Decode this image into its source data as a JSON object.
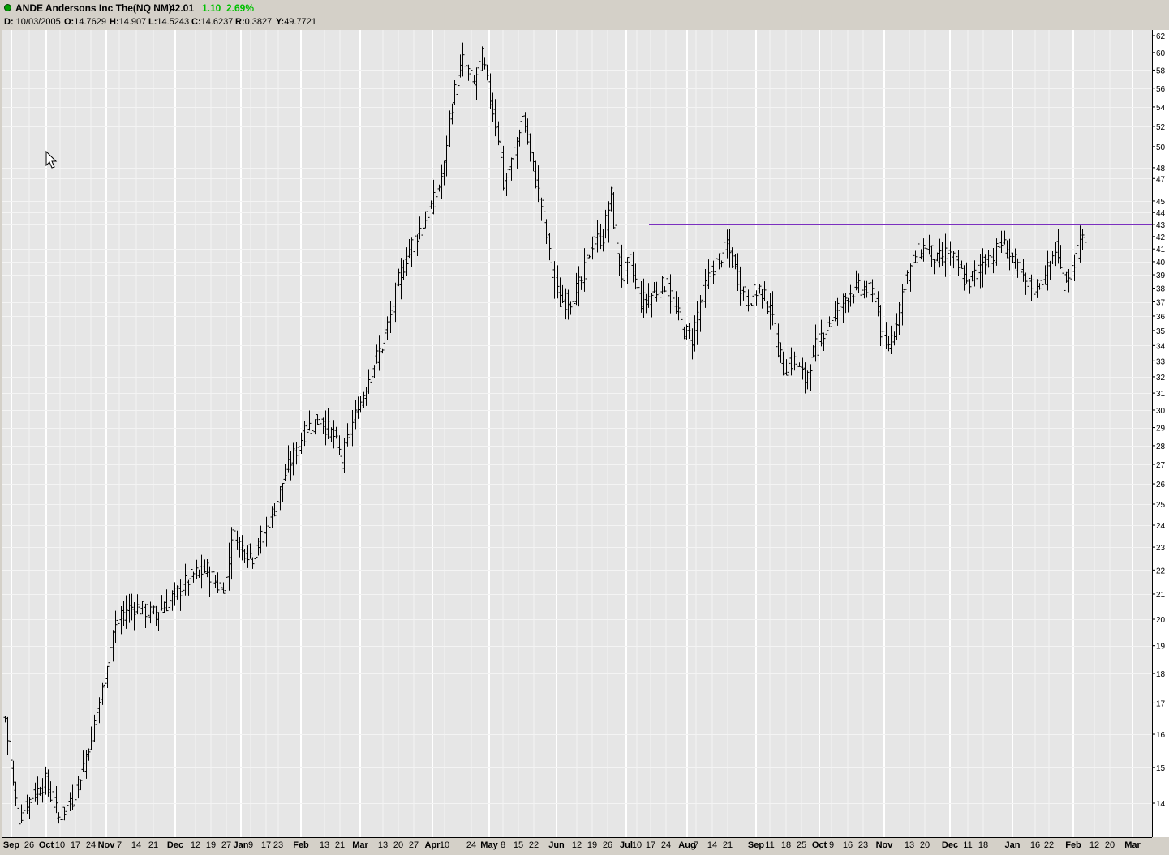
{
  "header": {
    "status_icon": "green-dot-icon",
    "title": "ANDE Andersons Inc The(NQ NM)",
    "last": "42.01",
    "change": "1.10",
    "change_pct": "2.69%",
    "change_color": "#00c000"
  },
  "info": {
    "d_label": "D:",
    "d_value": "10/03/2005",
    "o_label": "O:",
    "o_value": "14.7629",
    "h_label": "H:",
    "h_value": "14.907",
    "l_label": "L:",
    "l_value": "14.5243",
    "c_label": "C:",
    "c_value": "14.6237",
    "r_label": "R:",
    "r_value": "0.3827",
    "y_label": "Y:",
    "y_value": "49.7721"
  },
  "cursor_icon": "mouse-pointer-icon",
  "chart_data": {
    "type": "ohlc-bar",
    "ticker": "ANDE",
    "y_scale": "log",
    "ylim": [
      13.2,
      64.5
    ],
    "y_ticks": [
      14,
      15,
      16,
      17,
      18,
      19,
      20,
      21,
      22,
      23,
      24,
      25,
      26,
      27,
      28,
      29,
      30,
      31,
      32,
      33,
      34,
      35,
      36,
      37,
      38,
      39,
      40,
      41,
      42,
      43,
      44,
      45,
      47,
      48,
      50,
      52,
      54,
      56,
      58,
      60,
      62
    ],
    "x_ticks": [
      "Sep",
      "26",
      "Oct",
      "10",
      "17",
      "24",
      "Nov",
      "7",
      "14",
      "21",
      "Dec",
      "12",
      "19",
      "27",
      "Jan",
      "9",
      "17",
      "23",
      "Feb",
      "13",
      "21",
      "Mar",
      "13",
      "20",
      "27",
      "Apr",
      "10",
      "24",
      "May",
      "8",
      "15",
      "22",
      "Jun",
      "12",
      "19",
      "26",
      "Jul",
      "10",
      "17",
      "24",
      "Aug",
      "7",
      "14",
      "21",
      "Sep",
      "11",
      "18",
      "25",
      "Oct",
      "9",
      "16",
      "23",
      "Nov",
      "13",
      "20",
      "Dec",
      "11",
      "18",
      "Jan",
      "16",
      "22",
      "Feb",
      "12",
      "20",
      "Mar"
    ],
    "x_ticks_bold": [
      "Sep",
      "Oct",
      "Nov",
      "Dec",
      "Jan",
      "Feb",
      "Mar",
      "Apr",
      "May",
      "Jun",
      "Jul",
      "Aug"
    ],
    "horizontal_line": {
      "value": 43.0,
      "start_label": "Jul 17",
      "color": "#7b2fbf"
    },
    "bar_color": "#000000",
    "grid": true,
    "background": "#e6e6e6",
    "price_path": [
      [
        0,
        16.5
      ],
      [
        3,
        14.5
      ],
      [
        5,
        13.6
      ],
      [
        10,
        14.2
      ],
      [
        15,
        14.6
      ],
      [
        20,
        13.6
      ],
      [
        25,
        14.1
      ],
      [
        28,
        14.8
      ],
      [
        32,
        16.0
      ],
      [
        36,
        17.4
      ],
      [
        40,
        19.5
      ],
      [
        45,
        20.4
      ],
      [
        48,
        20.5
      ],
      [
        55,
        20.2
      ],
      [
        60,
        20.6
      ],
      [
        65,
        21.2
      ],
      [
        70,
        21.8
      ],
      [
        75,
        22.0
      ],
      [
        80,
        21.2
      ],
      [
        82,
        21.6
      ],
      [
        84,
        23.6
      ],
      [
        88,
        23.0
      ],
      [
        92,
        22.6
      ],
      [
        95,
        23.4
      ],
      [
        100,
        24.8
      ],
      [
        104,
        26.5
      ],
      [
        108,
        27.8
      ],
      [
        112,
        29.0
      ],
      [
        117,
        29.5
      ],
      [
        122,
        28.5
      ],
      [
        125,
        27.2
      ],
      [
        128,
        28.8
      ],
      [
        132,
        30.5
      ],
      [
        136,
        32.5
      ],
      [
        140,
        34.0
      ],
      [
        143,
        36.0
      ],
      [
        146,
        38.5
      ],
      [
        150,
        41.0
      ],
      [
        155,
        43.0
      ],
      [
        160,
        45.5
      ],
      [
        163,
        48.0
      ],
      [
        165,
        53.0
      ],
      [
        168,
        57.0
      ],
      [
        170,
        59.0
      ],
      [
        174,
        56.5
      ],
      [
        177,
        59.5
      ],
      [
        180,
        55.0
      ],
      [
        183,
        51.0
      ],
      [
        185,
        46.5
      ],
      [
        188,
        48.5
      ],
      [
        192,
        53.0
      ],
      [
        196,
        48.0
      ],
      [
        200,
        43.5
      ],
      [
        203,
        39.0
      ],
      [
        206,
        37.0
      ],
      [
        210,
        37.2
      ],
      [
        214,
        38.5
      ],
      [
        218,
        41.5
      ],
      [
        222,
        42.0
      ],
      [
        225,
        45.5
      ],
      [
        227,
        41.0
      ],
      [
        229,
        39.0
      ],
      [
        232,
        40.0
      ],
      [
        236,
        37.0
      ],
      [
        240,
        37.5
      ],
      [
        245,
        38.3
      ],
      [
        248,
        37.0
      ],
      [
        252,
        35.0
      ],
      [
        255,
        34.5
      ],
      [
        258,
        37.0
      ],
      [
        262,
        39.3
      ],
      [
        266,
        40.5
      ],
      [
        268,
        41.2
      ],
      [
        271,
        39.5
      ],
      [
        275,
        37.0
      ],
      [
        280,
        38.0
      ],
      [
        284,
        36.5
      ],
      [
        286,
        34.5
      ],
      [
        289,
        32.5
      ],
      [
        293,
        33.0
      ],
      [
        297,
        31.8
      ],
      [
        300,
        33.5
      ],
      [
        304,
        35.0
      ],
      [
        309,
        36.5
      ],
      [
        314,
        37.8
      ],
      [
        319,
        38.0
      ],
      [
        323,
        37.5
      ],
      [
        325,
        35.0
      ],
      [
        327,
        33.8
      ],
      [
        330,
        35.0
      ],
      [
        334,
        38.5
      ],
      [
        338,
        40.5
      ],
      [
        342,
        41.3
      ],
      [
        346,
        40.0
      ],
      [
        350,
        40.8
      ],
      [
        354,
        39.5
      ],
      [
        357,
        38.3
      ],
      [
        360,
        39.0
      ],
      [
        363,
        40.0
      ],
      [
        367,
        40.5
      ],
      [
        370,
        41.5
      ],
      [
        374,
        40.3
      ],
      [
        378,
        38.5
      ],
      [
        382,
        38.0
      ],
      [
        386,
        38.8
      ],
      [
        390,
        41.0
      ],
      [
        393,
        38.5
      ],
      [
        396,
        39.5
      ],
      [
        399,
        41.5
      ],
      [
        401,
        42.0
      ]
    ]
  }
}
